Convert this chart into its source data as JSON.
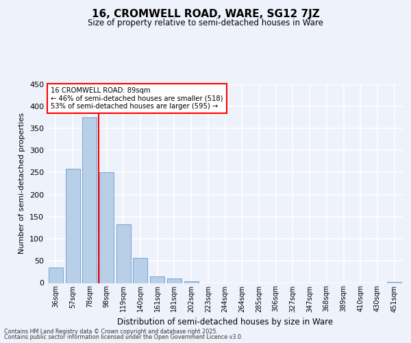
{
  "title": "16, CROMWELL ROAD, WARE, SG12 7JZ",
  "subtitle": "Size of property relative to semi-detached houses in Ware",
  "xlabel": "Distribution of semi-detached houses by size in Ware",
  "ylabel": "Number of semi-detached properties",
  "bar_labels": [
    "36sqm",
    "57sqm",
    "78sqm",
    "98sqm",
    "119sqm",
    "140sqm",
    "161sqm",
    "181sqm",
    "202sqm",
    "223sqm",
    "244sqm",
    "264sqm",
    "285sqm",
    "306sqm",
    "327sqm",
    "347sqm",
    "368sqm",
    "389sqm",
    "410sqm",
    "430sqm",
    "451sqm"
  ],
  "bar_values": [
    35,
    258,
    375,
    251,
    133,
    56,
    14,
    10,
    4,
    0,
    0,
    0,
    0,
    0,
    0,
    0,
    0,
    0,
    0,
    0,
    3
  ],
  "bar_color": "#b8cfe8",
  "bar_edge_color": "#6699cc",
  "background_color": "#eef2fb",
  "grid_color": "#ffffff",
  "vline_color": "red",
  "annotation_text_line1": "16 CROMWELL ROAD: 89sqm",
  "annotation_text_line2": "← 46% of semi-detached houses are smaller (518)",
  "annotation_text_line3": "53% of semi-detached houses are larger (595) →",
  "ylim": [
    0,
    450
  ],
  "yticks": [
    0,
    50,
    100,
    150,
    200,
    250,
    300,
    350,
    400,
    450
  ],
  "footnote1": "Contains HM Land Registry data © Crown copyright and database right 2025.",
  "footnote2": "Contains public sector information licensed under the Open Government Licence v3.0."
}
